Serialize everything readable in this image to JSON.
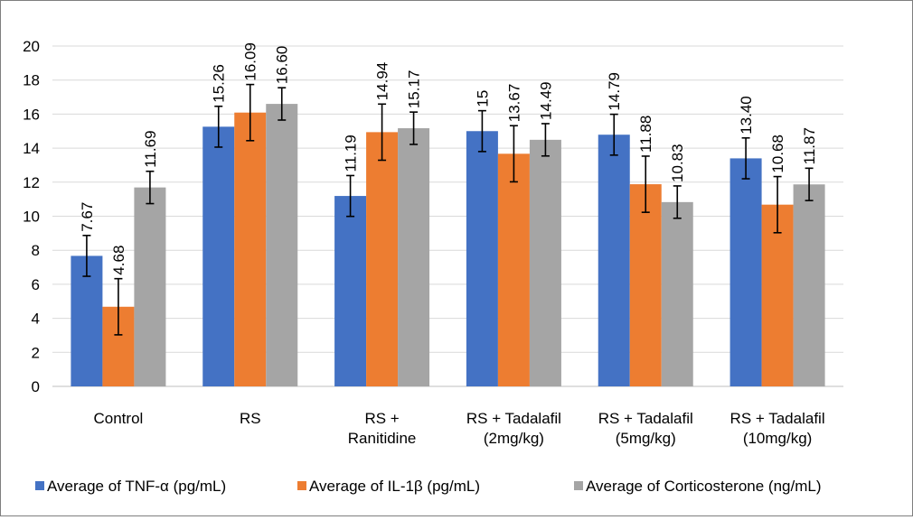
{
  "chart_data": {
    "type": "bar",
    "title": "",
    "xlabel": "",
    "ylabel": "",
    "ylim": [
      0,
      20
    ],
    "yticks": [
      "0",
      "2",
      "4",
      "6",
      "8",
      "10",
      "12",
      "14",
      "16",
      "18",
      "20"
    ],
    "grid": true,
    "legend_position": "bottom",
    "categories": [
      [
        "Control"
      ],
      [
        "RS"
      ],
      [
        "RS +",
        "Ranitidine"
      ],
      [
        "RS + Tadalafil",
        "(2mg/kg)"
      ],
      [
        "RS + Tadalafil",
        "(5mg/kg)"
      ],
      [
        "RS + Tadalafil",
        "(10mg/kg)"
      ]
    ],
    "series": [
      {
        "name": "Average of TNF-α (pg/mL)",
        "color": "#4472C4",
        "values": [
          7.67,
          15.26,
          11.19,
          15,
          14.79,
          13.4
        ],
        "labels": [
          "7.67",
          "15.26",
          "11.19",
          "15",
          "14.79",
          "13.40"
        ],
        "errors": [
          1.2,
          1.2,
          1.2,
          1.2,
          1.2,
          1.2
        ]
      },
      {
        "name": "Average of IL-1β (pg/mL)",
        "color": "#ED7D31",
        "values": [
          4.68,
          16.09,
          14.94,
          13.67,
          11.88,
          10.68
        ],
        "labels": [
          "4.68",
          "16.09",
          "14.94",
          "13.67",
          "11.88",
          "10.68"
        ],
        "errors": [
          1.65,
          1.65,
          1.65,
          1.65,
          1.65,
          1.65
        ]
      },
      {
        "name": "Average of Corticosterone (ng/mL)",
        "color": "#A5A5A5",
        "values": [
          11.69,
          16.6,
          15.17,
          14.49,
          10.83,
          11.87
        ],
        "labels": [
          "11.69",
          "16.60",
          "15.17",
          "14.49",
          "10.83",
          "11.87"
        ],
        "errors": [
          0.95,
          0.95,
          0.95,
          0.95,
          0.95,
          0.95
        ]
      }
    ]
  }
}
